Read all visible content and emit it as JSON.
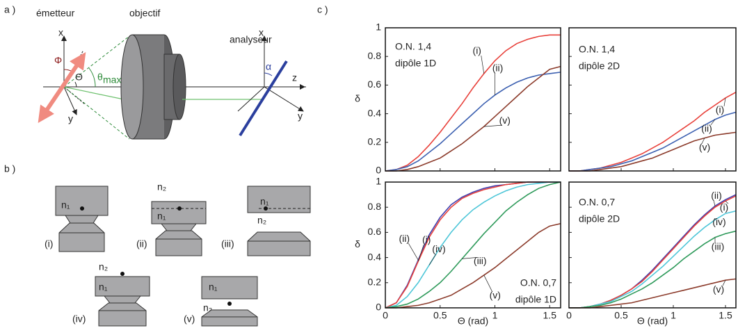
{
  "panel_a": {
    "label": "a )",
    "emitter": "émetteur",
    "objective": "objectif",
    "analyzer": "analyseur",
    "emitter_x": "x",
    "emitter_y": "y",
    "phi": "Φ",
    "theta": "Θ",
    "theta_max": "θ",
    "theta_max_sub": "max",
    "analyzer_x": "x",
    "analyzer_y": "y",
    "analyzer_z": "z",
    "alpha": "α"
  },
  "panel_b": {
    "label": "b )",
    "samples": [
      {
        "caption": "(i)",
        "labels": [
          "n₁"
        ]
      },
      {
        "caption": "(ii)",
        "labels": [
          "n₂",
          "n₁"
        ]
      },
      {
        "caption": "(iii)",
        "labels": [
          "n₁",
          "n₂"
        ]
      },
      {
        "caption": "(iv)",
        "labels": [
          "n₂",
          "n₁"
        ]
      },
      {
        "caption": "(v)",
        "labels": [
          "n₁",
          "n₂"
        ]
      }
    ]
  },
  "panel_c_label": "c )",
  "chart_data": [
    {
      "type": "line",
      "annotation": [
        "O.N. 1,4",
        "dipôle 1D"
      ],
      "ylabel": "δ",
      "xtick_labels": false,
      "ytick_labels": true,
      "x": [
        0,
        0.1,
        0.2,
        0.3,
        0.4,
        0.5,
        0.6,
        0.7,
        0.8,
        0.9,
        1.0,
        1.1,
        1.2,
        1.3,
        1.4,
        1.5,
        1.6
      ],
      "xlim": [
        0,
        1.6
      ],
      "ylim": [
        0,
        1
      ],
      "xticks": [
        0,
        0.5,
        1,
        1.5
      ],
      "yticks": [
        0,
        0.2,
        0.4,
        0.6,
        0.8,
        1
      ],
      "series": [
        {
          "name": "(i)",
          "color": "#e8403a",
          "values": [
            0,
            0.01,
            0.04,
            0.1,
            0.18,
            0.27,
            0.37,
            0.47,
            0.58,
            0.68,
            0.77,
            0.84,
            0.89,
            0.92,
            0.94,
            0.95,
            0.95
          ]
        },
        {
          "name": "(ii)",
          "color": "#3b5fb0",
          "values": [
            0,
            0.01,
            0.03,
            0.07,
            0.13,
            0.19,
            0.26,
            0.33,
            0.4,
            0.47,
            0.53,
            0.58,
            0.62,
            0.65,
            0.67,
            0.68,
            0.69
          ]
        },
        {
          "name": "(v)",
          "color": "#8b3a2a",
          "values": [
            0,
            0,
            0.01,
            0.03,
            0.06,
            0.09,
            0.14,
            0.19,
            0.25,
            0.31,
            0.38,
            0.45,
            0.52,
            0.59,
            0.65,
            0.71,
            0.73
          ]
        }
      ]
    },
    {
      "type": "line",
      "annotation": [
        "O.N. 1,4",
        "dipôle 2D"
      ],
      "xtick_labels": false,
      "ytick_labels": false,
      "x": [
        0,
        0.1,
        0.2,
        0.3,
        0.4,
        0.5,
        0.6,
        0.7,
        0.8,
        0.9,
        1.0,
        1.1,
        1.2,
        1.3,
        1.4,
        1.5,
        1.6
      ],
      "xlim": [
        0,
        1.6
      ],
      "ylim": [
        0,
        1
      ],
      "xticks": [
        0,
        0.5,
        1,
        1.5
      ],
      "yticks": [
        0,
        0.2,
        0.4,
        0.6,
        0.8,
        1
      ],
      "series": [
        {
          "name": "(i)",
          "color": "#e8403a",
          "values": [
            0,
            0,
            0.01,
            0.02,
            0.04,
            0.06,
            0.09,
            0.12,
            0.16,
            0.2,
            0.25,
            0.3,
            0.35,
            0.41,
            0.46,
            0.51,
            0.55
          ]
        },
        {
          "name": "(ii)",
          "color": "#3b5fb0",
          "values": [
            0,
            0,
            0.01,
            0.02,
            0.03,
            0.05,
            0.07,
            0.1,
            0.13,
            0.16,
            0.2,
            0.24,
            0.28,
            0.32,
            0.36,
            0.39,
            0.41
          ]
        },
        {
          "name": "(v)",
          "color": "#8b3a2a",
          "values": [
            0,
            0,
            0,
            0.01,
            0.02,
            0.03,
            0.05,
            0.07,
            0.09,
            0.12,
            0.15,
            0.18,
            0.21,
            0.23,
            0.25,
            0.26,
            0.27
          ]
        }
      ]
    },
    {
      "type": "line",
      "annotation": [
        "O.N. 0,7",
        "dipôle 1D"
      ],
      "ylabel": "δ",
      "xlabel": "Θ (rad)",
      "xtick_labels": true,
      "ytick_labels": true,
      "x": [
        0,
        0.1,
        0.2,
        0.3,
        0.4,
        0.5,
        0.6,
        0.7,
        0.8,
        0.9,
        1.0,
        1.1,
        1.2,
        1.3,
        1.4,
        1.5,
        1.6
      ],
      "xlim": [
        0,
        1.6
      ],
      "ylim": [
        0,
        1
      ],
      "xticks": [
        0,
        0.5,
        1,
        1.5
      ],
      "yticks": [
        0,
        0.2,
        0.4,
        0.6,
        0.8,
        1
      ],
      "series": [
        {
          "name": "(ii)",
          "color": "#4040b0",
          "values": [
            0,
            0.04,
            0.18,
            0.38,
            0.58,
            0.72,
            0.82,
            0.88,
            0.92,
            0.95,
            0.97,
            0.98,
            0.99,
            1,
            1,
            1,
            1
          ]
        },
        {
          "name": "(i)",
          "color": "#e8403a",
          "values": [
            0,
            0.04,
            0.17,
            0.37,
            0.56,
            0.7,
            0.8,
            0.87,
            0.91,
            0.94,
            0.96,
            0.98,
            0.99,
            1,
            1,
            1,
            1
          ]
        },
        {
          "name": "(iv)",
          "color": "#4dc6d8",
          "values": [
            0,
            0.02,
            0.09,
            0.2,
            0.34,
            0.48,
            0.6,
            0.7,
            0.78,
            0.84,
            0.89,
            0.93,
            0.96,
            0.98,
            0.99,
            1,
            1
          ]
        },
        {
          "name": "(iii)",
          "color": "#2e9a5a",
          "values": [
            0,
            0.01,
            0.03,
            0.07,
            0.13,
            0.2,
            0.29,
            0.39,
            0.49,
            0.59,
            0.68,
            0.77,
            0.84,
            0.9,
            0.95,
            0.98,
            1
          ]
        },
        {
          "name": "(v)",
          "color": "#8b3a2a",
          "values": [
            0,
            0,
            0.01,
            0.02,
            0.04,
            0.07,
            0.1,
            0.15,
            0.2,
            0.26,
            0.32,
            0.39,
            0.46,
            0.53,
            0.6,
            0.65,
            0.67
          ]
        }
      ]
    },
    {
      "type": "line",
      "annotation": [
        "O.N. 0,7",
        "dipôle 2D"
      ],
      "xlabel": "Θ (rad)",
      "xtick_labels": true,
      "ytick_labels": false,
      "x": [
        0,
        0.1,
        0.2,
        0.3,
        0.4,
        0.5,
        0.6,
        0.7,
        0.8,
        0.9,
        1.0,
        1.1,
        1.2,
        1.3,
        1.4,
        1.5,
        1.6
      ],
      "xlim": [
        0,
        1.6
      ],
      "ylim": [
        0,
        1
      ],
      "xticks": [
        0,
        0.5,
        1,
        1.5
      ],
      "yticks": [
        0,
        0.2,
        0.4,
        0.6,
        0.8,
        1
      ],
      "series": [
        {
          "name": "(ii)",
          "color": "#4040b0",
          "values": [
            0,
            0,
            0.01,
            0.03,
            0.06,
            0.1,
            0.15,
            0.22,
            0.3,
            0.39,
            0.48,
            0.57,
            0.66,
            0.74,
            0.81,
            0.86,
            0.9
          ]
        },
        {
          "name": "(i)",
          "color": "#e8403a",
          "values": [
            0,
            0,
            0.01,
            0.03,
            0.06,
            0.1,
            0.15,
            0.21,
            0.29,
            0.38,
            0.47,
            0.56,
            0.65,
            0.73,
            0.8,
            0.85,
            0.89
          ]
        },
        {
          "name": "(iv)",
          "color": "#4dc6d8",
          "values": [
            0,
            0,
            0.01,
            0.03,
            0.05,
            0.09,
            0.13,
            0.19,
            0.26,
            0.33,
            0.41,
            0.49,
            0.57,
            0.64,
            0.7,
            0.75,
            0.77
          ]
        },
        {
          "name": "(iii)",
          "color": "#2e9a5a",
          "values": [
            0,
            0,
            0.01,
            0.02,
            0.04,
            0.07,
            0.11,
            0.15,
            0.2,
            0.26,
            0.32,
            0.39,
            0.45,
            0.51,
            0.56,
            0.59,
            0.61
          ]
        },
        {
          "name": "(v)",
          "color": "#8b3a2a",
          "values": [
            0,
            0,
            0,
            0.01,
            0.02,
            0.03,
            0.04,
            0.06,
            0.08,
            0.1,
            0.12,
            0.14,
            0.16,
            0.18,
            0.2,
            0.22,
            0.23
          ]
        }
      ]
    }
  ]
}
